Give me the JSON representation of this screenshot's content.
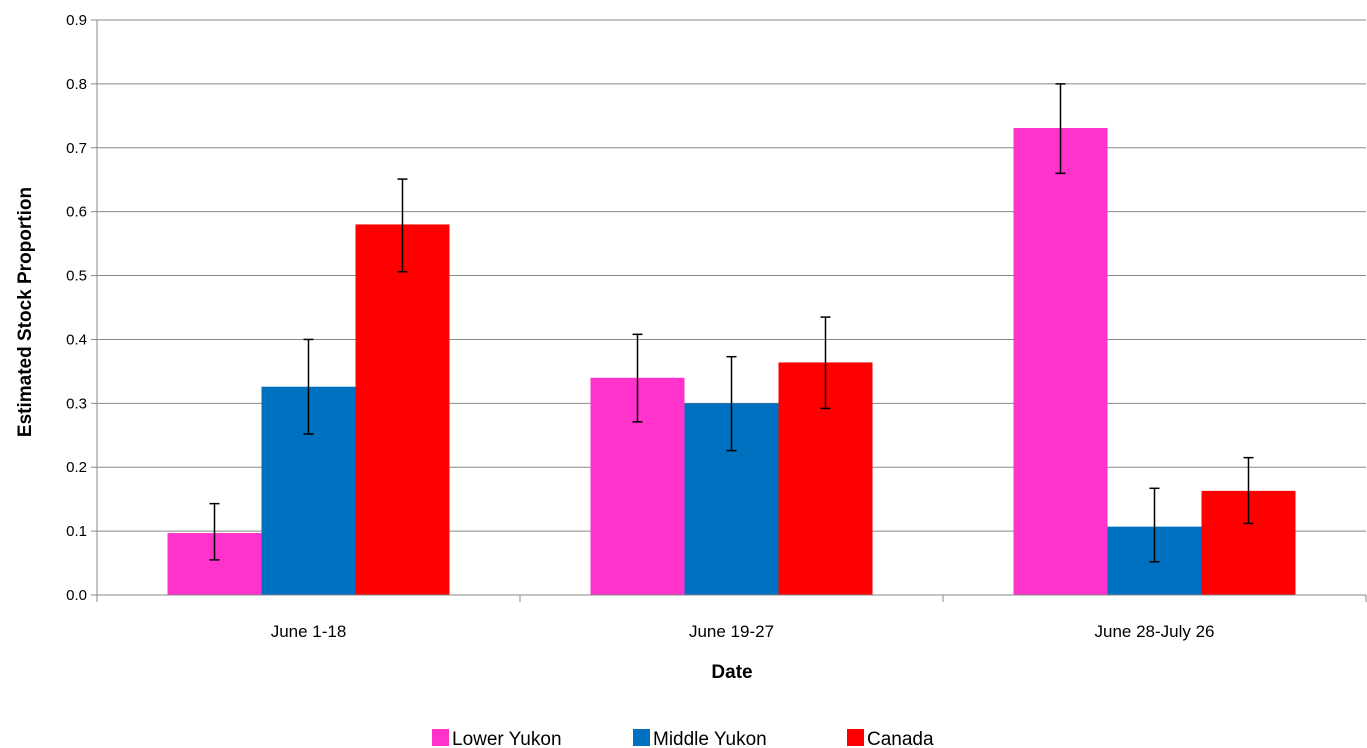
{
  "chart_data": {
    "type": "bar",
    "categories": [
      "June 1-18",
      "June 19-27",
      "June 28-July 26"
    ],
    "series": [
      {
        "name": "Lower  Yukon",
        "color": "#ff33cc",
        "values": [
          0.097,
          0.34,
          0.731
        ],
        "error_low": [
          0.055,
          0.271,
          0.66
        ],
        "error_high": [
          0.143,
          0.408,
          0.8
        ]
      },
      {
        "name": "Middle  Yukon",
        "color": "#0070c0",
        "values": [
          0.326,
          0.3,
          0.107
        ],
        "error_low": [
          0.252,
          0.226,
          0.052
        ],
        "error_high": [
          0.4,
          0.373,
          0.167
        ]
      },
      {
        "name": "Canada",
        "color": "#ff0000",
        "values": [
          0.58,
          0.364,
          0.163
        ],
        "error_low": [
          0.506,
          0.292,
          0.112
        ],
        "error_high": [
          0.651,
          0.435,
          0.215
        ]
      }
    ],
    "yticks": [
      "0.0",
      "0.1",
      "0.2",
      "0.3",
      "0.4",
      "0.5",
      "0.6",
      "0.7",
      "0.8",
      "0.9"
    ],
    "ylim": [
      0,
      0.9
    ],
    "xlabel": "Date",
    "ylabel": "Estimated Stock Proportion",
    "grid": true,
    "legend_position": "bottom"
  }
}
